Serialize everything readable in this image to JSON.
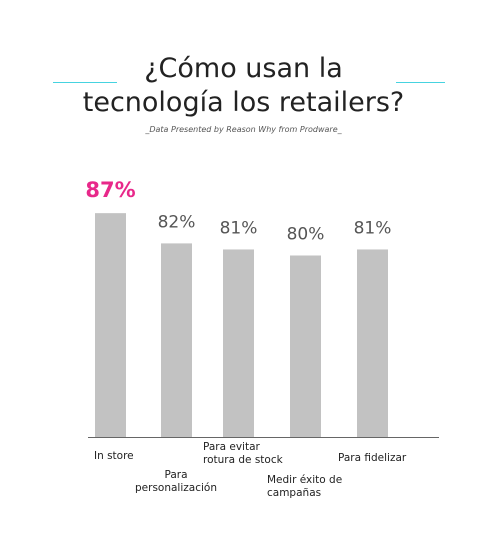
{
  "header": {
    "title_line1": "¿Cómo usan la",
    "title_line2": "tecnología los retailers?",
    "subtitle": "_Data Presented by Reason Why from Prodware_"
  },
  "colors": {
    "bar": "#c2c2c2",
    "highlight_label": "#e8288a",
    "value_label": "#555555",
    "axis": "#666666",
    "accent_line": "#46d3e0",
    "category_text": "#222222"
  },
  "chart_data": {
    "type": "bar",
    "title": "¿Cómo usan la tecnología los retailers?",
    "subtitle": "_Data Presented by Reason Why from Prodware_",
    "categories": [
      [
        "In store"
      ],
      [
        "Para",
        "personalización"
      ],
      [
        "Para evitar",
        "rotura de stock"
      ],
      [
        "Medir éxito de",
        "campañas"
      ],
      [
        "Para fidelizar"
      ]
    ],
    "values": [
      87,
      82,
      81,
      80,
      81
    ],
    "value_labels": [
      "87%",
      "82%",
      "81%",
      "80%",
      "81%"
    ],
    "highlight_index": 0,
    "xlabel": "",
    "ylabel": "",
    "ylim": [
      50,
      90
    ],
    "grid": false,
    "legend": false
  }
}
